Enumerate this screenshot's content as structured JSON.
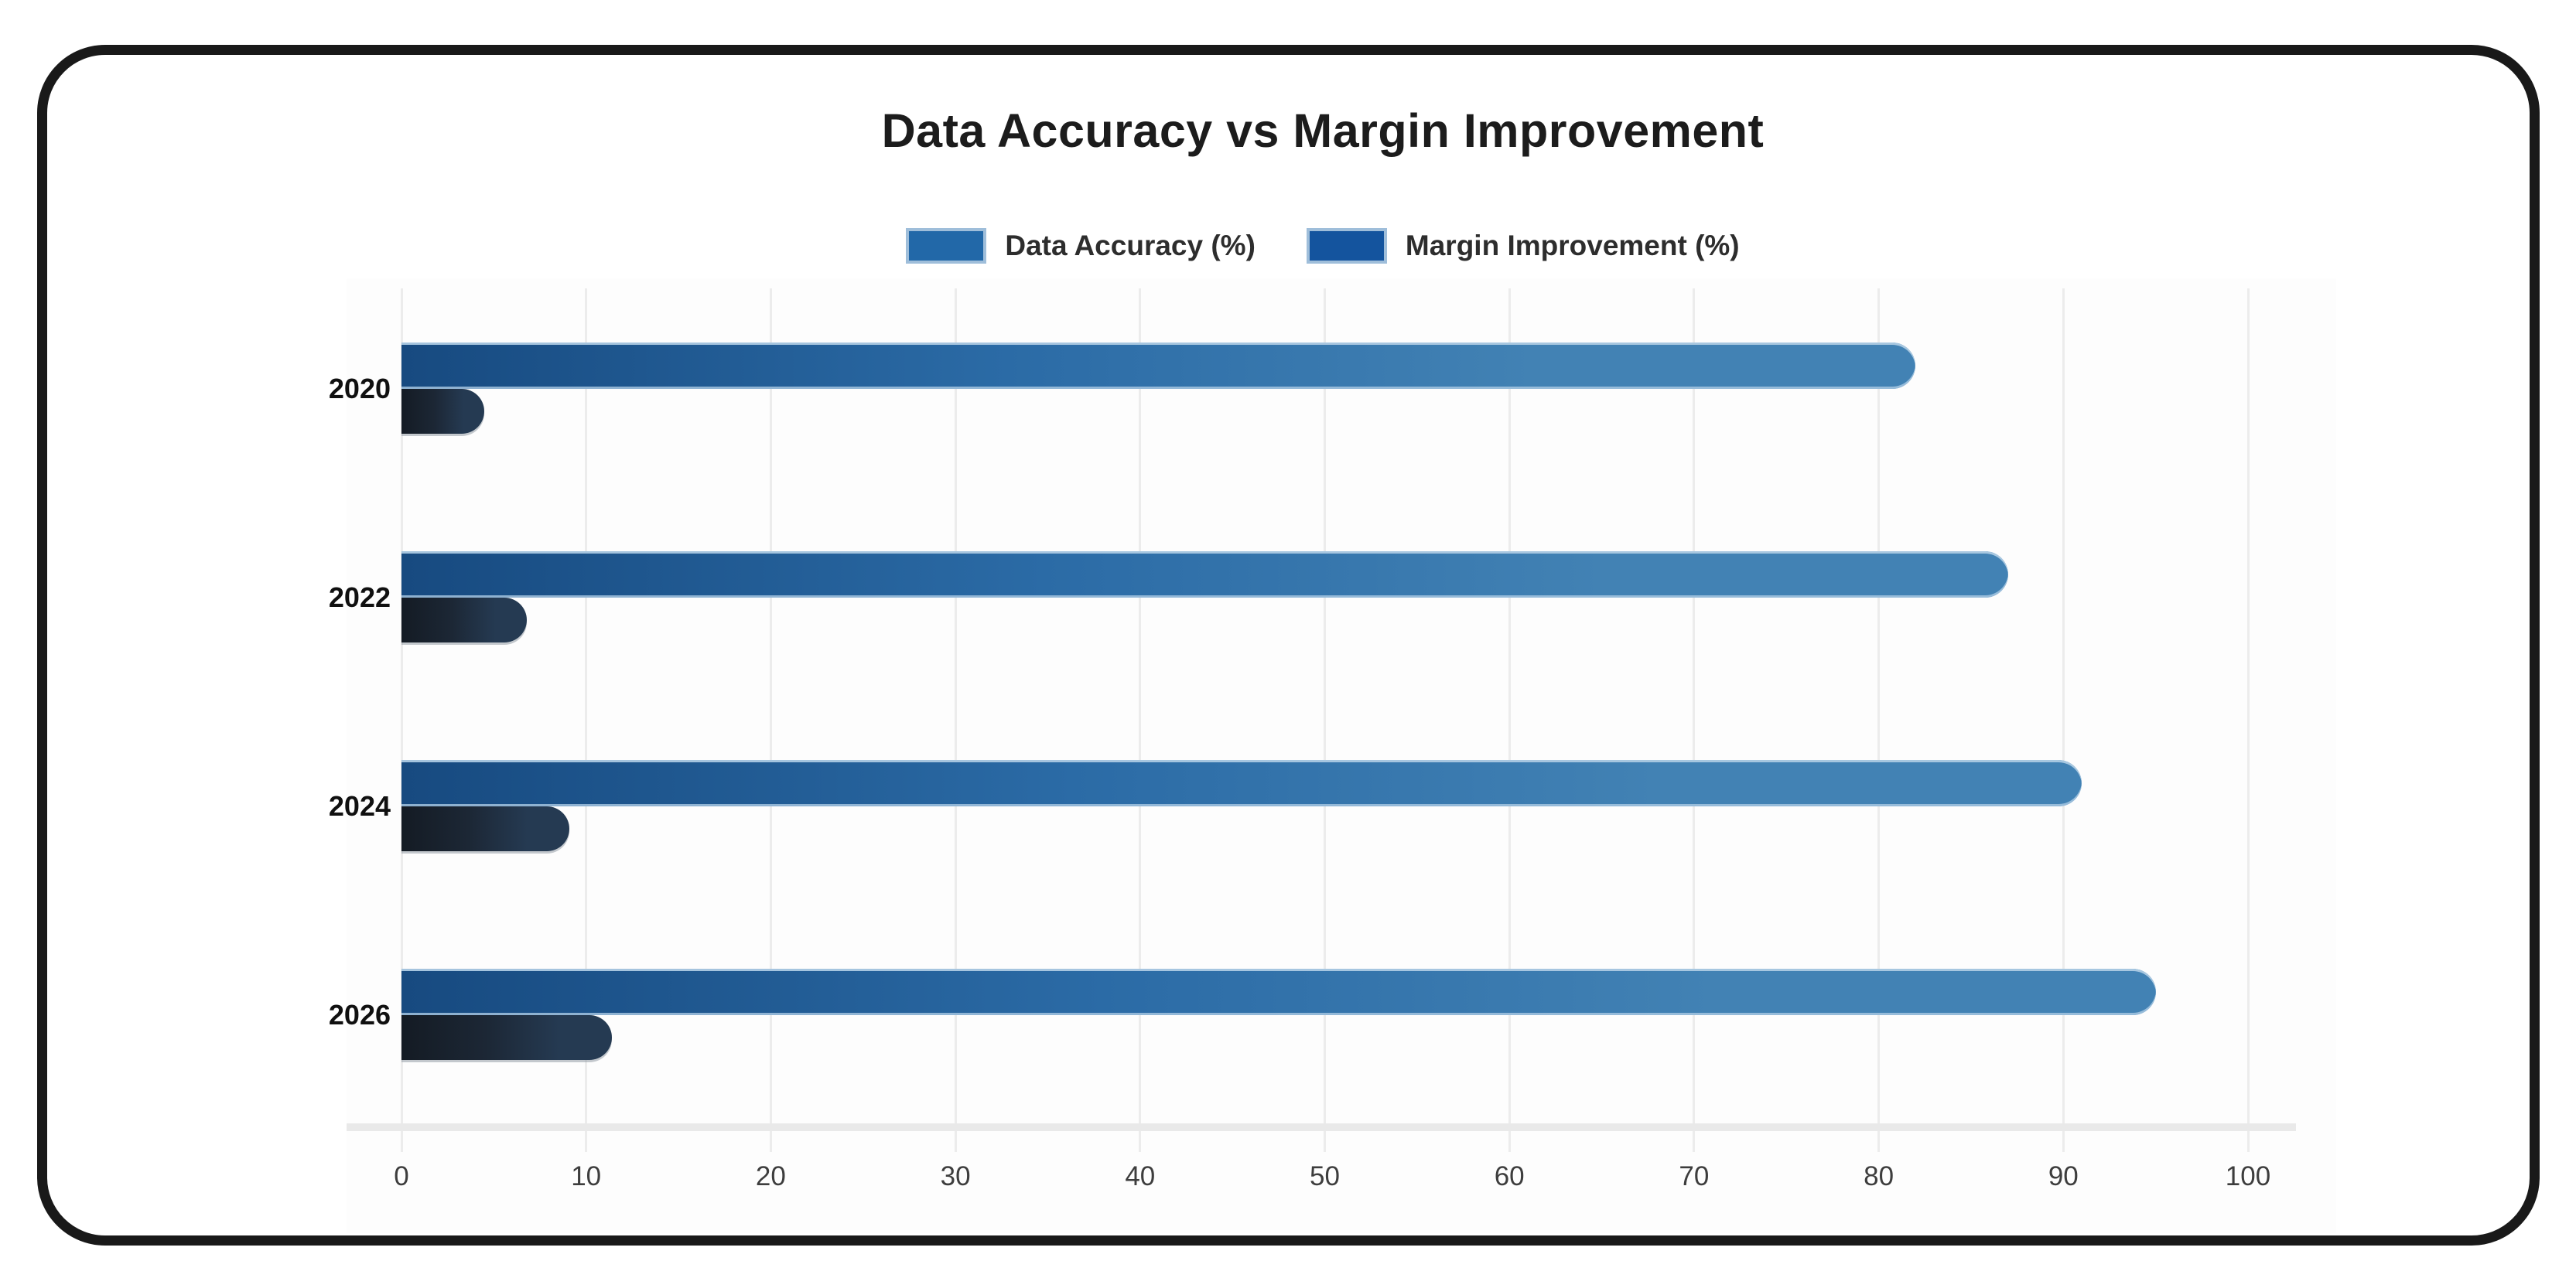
{
  "chart_data": {
    "type": "bar",
    "orientation": "horizontal",
    "title": "Data Accuracy vs Margin Improvement",
    "categories": [
      "2020",
      "2022",
      "2024",
      "2026"
    ],
    "series": [
      {
        "name": "Data Accuracy (%)",
        "values": [
          82,
          87,
          91,
          95
        ],
        "fill_start": "#174a80",
        "fill_mid": "#2b6ba6",
        "fill_end": "#4282b4",
        "edge": "#a9c6de",
        "legend_fill": "#2268a8",
        "legend_edge": "#9fbeda"
      },
      {
        "name": "Margin Improvement (%)",
        "values": [
          4.5,
          6.8,
          9.1,
          11.4
        ],
        "fill_start": "#141b24",
        "fill_mid": "#1c2735",
        "fill_end": "#253a52",
        "edge": "#949da6",
        "legend_fill": "#14549e",
        "legend_edge": "#9fbeda"
      }
    ],
    "x_axis": {
      "ticks": [
        0,
        10,
        20,
        30,
        40,
        50,
        60,
        70,
        80,
        90,
        100
      ],
      "min": 0,
      "max": 100
    },
    "grid": {
      "vertical": true,
      "color": "#ececec"
    },
    "legend_position": "top",
    "background": "#ffffff",
    "frame_color": "#191919",
    "text_colors": {
      "title": "#1c1c1c",
      "legend": "#2d2d2d",
      "ticks": "#3d3d3d",
      "categories": "#101010"
    }
  }
}
